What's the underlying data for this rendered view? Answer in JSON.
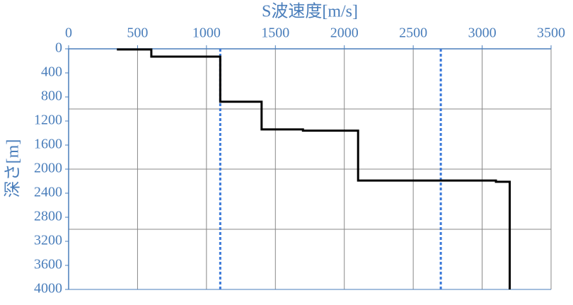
{
  "chart_data": {
    "type": "line",
    "x_label": "S波速度[m/s]",
    "y_label": "深さ[m]",
    "xlim": [
      0,
      3500
    ],
    "xticks": [
      0,
      500,
      1000,
      1500,
      2000,
      2500,
      3000,
      3500
    ],
    "ylim": [
      0,
      4000
    ],
    "yticks": [
      0,
      400,
      800,
      1200,
      1600,
      2000,
      2400,
      2800,
      3200,
      3600,
      4000
    ],
    "y_inverted": true,
    "x_grid": true,
    "y_grid": [
      1000,
      2000,
      3000
    ],
    "reference_lines": {
      "color": "#3a78d8",
      "values": [
        1100,
        2700
      ]
    },
    "series": [
      {
        "color": "#000000",
        "x": [
          350,
          600,
          600,
          1100,
          1100,
          1400,
          1400,
          1700,
          1700,
          2100,
          2100,
          3100,
          3100,
          3200,
          3200
        ],
        "values": [
          10,
          10,
          130,
          130,
          880,
          880,
          1340,
          1340,
          1360,
          1360,
          2190,
          2190,
          2210,
          2210,
          4000
        ]
      }
    ]
  }
}
